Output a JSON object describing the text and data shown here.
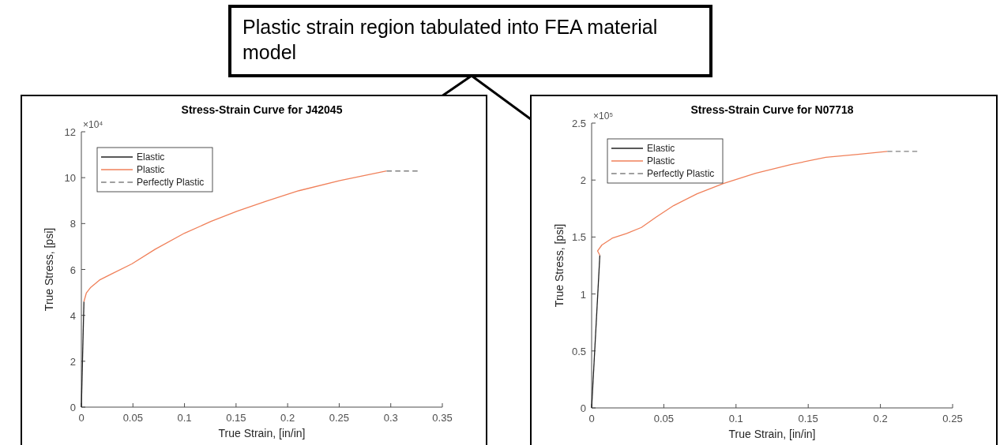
{
  "chart_data": [
    {
      "type": "other",
      "annotations": [
        "Plastic strain region tabulated into FEA material model"
      ]
    },
    {
      "type": "line",
      "title": "Stress-Strain Curve for J42045",
      "xlabel": "True Strain, [in/in]",
      "ylabel": "True Stress, [psi]",
      "annotations": [
        "×10⁴"
      ],
      "legend": "top left",
      "xlim": [
        0,
        0.35
      ],
      "ylim": [
        0,
        12
      ],
      "xticks": [
        0,
        0.05,
        0.1,
        0.15,
        0.2,
        0.25,
        0.3,
        0.35
      ],
      "yticks": [
        0,
        2,
        4,
        6,
        8,
        10,
        12
      ],
      "series": [
        {
          "name": "Elastic",
          "color": "#222222",
          "x": [
            0,
            0.0025
          ],
          "values": [
            0,
            4.6
          ]
        },
        {
          "name": "Plastic",
          "color": "#f0805a",
          "x": [
            0.0025,
            0.0028,
            0.0048,
            0.0091,
            0.0176,
            0.029,
            0.0489,
            0.0716,
            0.1,
            0.1256,
            0.1511,
            0.1795,
            0.2108,
            0.2506,
            0.296
          ],
          "values": [
            4.6,
            4.65,
            4.97,
            5.22,
            5.54,
            5.8,
            6.24,
            6.88,
            7.58,
            8.09,
            8.54,
            8.98,
            9.43,
            9.87,
            10.29
          ]
        },
        {
          "name": "Perfectly Plastic",
          "color": "#808080",
          "line_style": "dashed",
          "x": [
            0.296,
            0.326
          ],
          "values": [
            10.29,
            10.29
          ]
        }
      ]
    },
    {
      "type": "line",
      "title": "Stress-Strain Curve for N07718",
      "xlabel": "True Strain, [in/in]",
      "ylabel": "True Stress, [psi]",
      "annotations": [
        "×10⁵"
      ],
      "legend": "top left",
      "xlim": [
        0,
        0.25
      ],
      "ylim": [
        0,
        2.5
      ],
      "xticks": [
        0,
        0.05,
        0.1,
        0.15,
        0.2,
        0.25
      ],
      "yticks": [
        0,
        0.5,
        1,
        1.5,
        2,
        2.5
      ],
      "series": [
        {
          "name": "Elastic",
          "color": "#222222",
          "x": [
            0,
            0.0057
          ],
          "values": [
            0,
            1.34
          ]
        },
        {
          "name": "Plastic",
          "color": "#f0805a",
          "x": [
            0.0057,
            0.0041,
            0.0071,
            0.0142,
            0.0243,
            0.0345,
            0.0446,
            0.0568,
            0.073,
            0.0912,
            0.1135,
            0.1379,
            0.1622,
            0.1845,
            0.2048
          ],
          "values": [
            1.34,
            1.378,
            1.43,
            1.489,
            1.532,
            1.584,
            1.674,
            1.776,
            1.879,
            1.969,
            2.059,
            2.136,
            2.2,
            2.226,
            2.251
          ]
        },
        {
          "name": "Perfectly Plastic",
          "color": "#808080",
          "line_style": "dashed",
          "x": [
            0.2048,
            0.2255
          ],
          "values": [
            2.251,
            2.251
          ]
        }
      ]
    }
  ]
}
